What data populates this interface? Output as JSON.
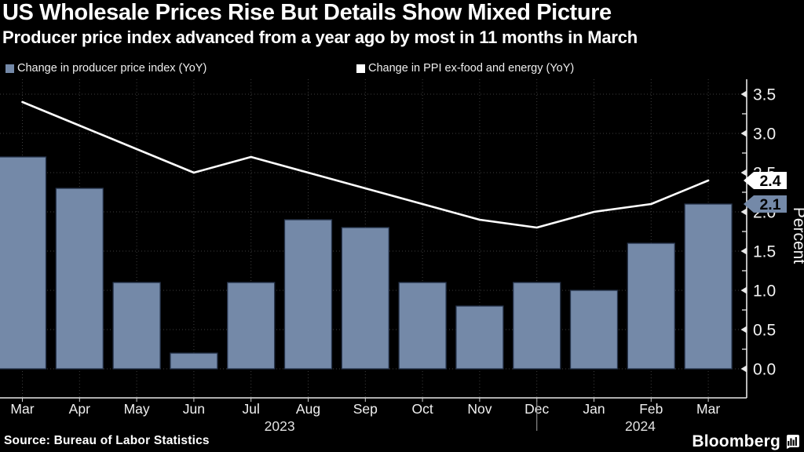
{
  "header": {
    "title": "US Wholesale Prices Rise But Details Show Mixed Picture",
    "subtitle": "Producer price index advanced from a year ago by most in 11 months in March"
  },
  "legend": [
    {
      "label": "Change in producer price index (YoY)",
      "color": "#7489A8"
    },
    {
      "label": "Change in PPI ex-food and energy (YoY)",
      "color": "#ffffff"
    }
  ],
  "chart_data": {
    "type": "bar+line",
    "categories": [
      "Mar",
      "Apr",
      "May",
      "Jun",
      "Jul",
      "Aug",
      "Sep",
      "Oct",
      "Nov",
      "Dec",
      "Jan",
      "Feb",
      "Mar"
    ],
    "series": [
      {
        "name": "Change in producer price index (YoY)",
        "type": "bar",
        "color": "#7489A8",
        "edge_color": "#26334a",
        "values": [
          2.7,
          2.3,
          1.1,
          0.2,
          1.1,
          1.9,
          1.8,
          1.1,
          0.8,
          1.1,
          1.0,
          1.6,
          2.1
        ]
      },
      {
        "name": "Change in PPI ex-food and energy (YoY)",
        "type": "line",
        "color": "#ffffff",
        "values": [
          3.4,
          3.1,
          2.8,
          2.5,
          2.7,
          2.5,
          2.3,
          2.1,
          1.9,
          1.8,
          2.0,
          2.1,
          2.4
        ]
      }
    ],
    "title": "US Wholesale Prices Rise But Details Show Mixed Picture",
    "xlabel": "",
    "ylabel": "Percent",
    "ylim": [
      -0.4,
      3.67
    ],
    "grid": true,
    "legend_position": "top-left",
    "y_ticks": [
      {
        "v": 0.0,
        "label": "0.0"
      },
      {
        "v": 0.5,
        "label": "0.5"
      },
      {
        "v": 1.0,
        "label": "1.0"
      },
      {
        "v": 1.5,
        "label": "1.5"
      },
      {
        "v": 2.0,
        "label": "2.0"
      },
      {
        "v": 2.5,
        "label": "2.5"
      },
      {
        "v": 3.0,
        "label": "3.0"
      },
      {
        "v": 3.5,
        "label": "3.5"
      }
    ],
    "end_labels": [
      {
        "value": 2.4,
        "text": "2.4",
        "bg": "#ffffff",
        "fg": "#000000"
      },
      {
        "value": 2.1,
        "text": "2.1",
        "bg": "#7489A8",
        "fg": "#000000"
      }
    ],
    "x_axis": {
      "year_labels": [
        {
          "text": "2023",
          "month_index": 4.5
        },
        {
          "text": "2024",
          "month_index": 10.81
        }
      ],
      "year_divider_month_index": 9
    }
  },
  "footer": {
    "source": "Source: Bureau of Labor Statistics",
    "brand": "Bloomberg"
  }
}
